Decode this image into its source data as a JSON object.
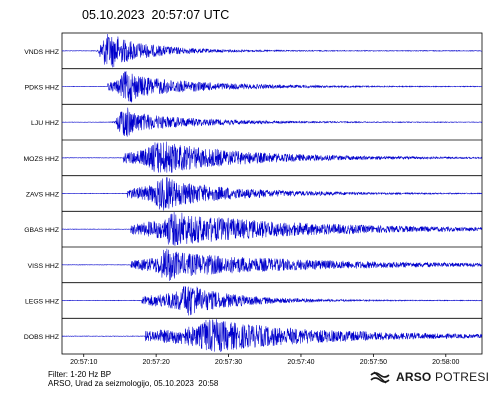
{
  "header": {
    "title": "05.10.2023  20:57:07 UTC"
  },
  "chart_data": {
    "type": "line",
    "title": "05.10.2023  20:57:07 UTC",
    "xlabel": "",
    "ylabel": "",
    "x_range": [
      "20:57:07",
      "20:58:05"
    ],
    "x_ticks": [
      "20:57:10",
      "20:57:20",
      "20:57:30",
      "20:57:40",
      "20:57:50",
      "20:58:00"
    ],
    "line_color": "#0000cc",
    "grid": false,
    "series": [
      {
        "name": "VNDS HHZ",
        "onset_s": 5.0,
        "peak_s": 6.5,
        "peak_amp": 1.0,
        "decay_s": 6
      },
      {
        "name": "PDKS HHZ",
        "onset_s": 6.3,
        "peak_s": 9.0,
        "peak_amp": 0.75,
        "decay_s": 10
      },
      {
        "name": "LJU HHZ",
        "onset_s": 7.5,
        "peak_s": 8.5,
        "peak_amp": 0.7,
        "decay_s": 9
      },
      {
        "name": "MOZS HHZ",
        "onset_s": 8.5,
        "peak_s": 13.5,
        "peak_amp": 1.0,
        "decay_s": 12
      },
      {
        "name": "ZAVS HHZ",
        "onset_s": 9.0,
        "peak_s": 14.0,
        "peak_amp": 0.9,
        "decay_s": 10
      },
      {
        "name": "GBAS HHZ",
        "onset_s": 9.5,
        "peak_s": 15.5,
        "peak_amp": 1.0,
        "decay_s": 18
      },
      {
        "name": "VISS HHZ",
        "onset_s": 9.5,
        "peak_s": 14.5,
        "peak_amp": 0.8,
        "decay_s": 20
      },
      {
        "name": "LEGS HHZ",
        "onset_s": 11.0,
        "peak_s": 17.5,
        "peak_amp": 0.9,
        "decay_s": 7
      },
      {
        "name": "DOBS HHZ",
        "onset_s": 11.5,
        "peak_s": 20.5,
        "peak_amp": 1.0,
        "decay_s": 16
      }
    ]
  },
  "footer": {
    "filter": "Filter: 1-20 Hz BP",
    "credit": "ARSO, Urad za seizmologijo, 05.10.2023  20:58"
  },
  "logo": {
    "bold": "ARSO",
    "light": "POTRESI",
    "icon": "arso-wave-logo-icon"
  }
}
